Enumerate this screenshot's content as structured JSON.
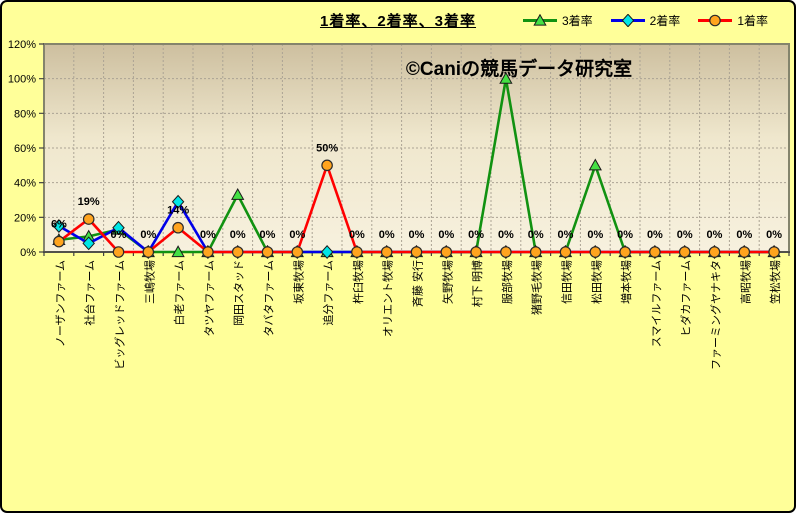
{
  "title": "1着率、2着率、3着率",
  "watermark": "©Caniの競馬データ研究室",
  "colors": {
    "page_bg": "#FFFF99",
    "plot_border": "#84846C",
    "grid": "#ABA394",
    "axis": "#404040",
    "watermark": "#9999E8"
  },
  "chart_data": {
    "type": "line",
    "title": "1着率、2着率、3着率",
    "categories": [
      "ノーザンファーム",
      "社台ファーム",
      "ビッグレッドファーム",
      "三嶋牧場",
      "白老ファーム",
      "タツヤファーム",
      "岡田スタッド",
      "タバタファーム",
      "坂東牧場",
      "追分ファーム",
      "杵臼牧場",
      "オリエント牧場",
      "斉藤 安行",
      "矢野牧場",
      "村下 明博",
      "服部牧場",
      "猪野毛牧場",
      "信田牧場",
      "松田牧場",
      "増本牧場",
      "スマイルファーム",
      "ヒダカファーム",
      "ファーミングヤナキタ",
      "高昭牧場",
      "笠松牧場"
    ],
    "series": [
      {
        "name": "3着率",
        "line_color": "#119211",
        "marker": "triangle",
        "marker_fill": "#44E044",
        "values": [
          7,
          9,
          13,
          0,
          0,
          0,
          33,
          0,
          0,
          0,
          0,
          0,
          0,
          0,
          0,
          100,
          0,
          0,
          50,
          0,
          0,
          0,
          0,
          0,
          0
        ]
      },
      {
        "name": "2着率",
        "line_color": "#0000E8",
        "marker": "diamond",
        "marker_fill": "#00E6E6",
        "values": [
          15,
          5,
          14,
          0,
          29,
          0,
          0,
          0,
          0,
          0,
          0,
          0,
          0,
          0,
          0,
          0,
          0,
          0,
          0,
          0,
          0,
          0,
          0,
          0,
          0
        ]
      },
      {
        "name": "1着率",
        "line_color": "#FF0000",
        "marker": "circle",
        "marker_fill": "#FFA41E",
        "values": [
          6,
          19,
          0,
          0,
          14,
          0,
          0,
          0,
          0,
          50,
          0,
          0,
          0,
          0,
          0,
          0,
          0,
          0,
          0,
          0,
          0,
          0,
          0,
          0,
          0
        ]
      }
    ],
    "data_labels": {
      "series": "1着率",
      "values": [
        "6%",
        "19%",
        "0%",
        "0%",
        "14%",
        "0%",
        "0%",
        "0%",
        "0%",
        "50%",
        "0%",
        "0%",
        "0%",
        "0%",
        "0%",
        "0%",
        "0%",
        "0%",
        "0%",
        "0%",
        "0%",
        "0%",
        "0%",
        "0%",
        "0%"
      ]
    },
    "y_ticks": [
      "0%",
      "20%",
      "40%",
      "60%",
      "80%",
      "100%",
      "120%"
    ],
    "ylim": [
      0,
      120
    ],
    "xlabel": "",
    "ylabel": "",
    "grid": true,
    "legend_position": "top-right"
  }
}
